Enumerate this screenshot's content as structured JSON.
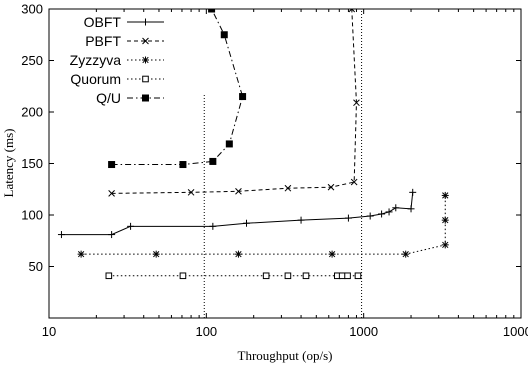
{
  "chart_data": {
    "type": "line",
    "xlabel": "Throughput (op/s)",
    "ylabel": "Latency (ms)",
    "xscale": "log",
    "xlim": [
      10,
      10000
    ],
    "ylim": [
      0,
      300
    ],
    "xticks": [
      10,
      100,
      1000,
      10000
    ],
    "xtick_labels": [
      "10",
      "100",
      "1000",
      "10000"
    ],
    "yticks": [
      50,
      100,
      150,
      200,
      250,
      300
    ],
    "ytick_labels": [
      "50",
      "100",
      "150",
      "200",
      "250",
      "300"
    ],
    "grid": false,
    "legend_position": "top-left",
    "reference_lines": [
      {
        "x": 97,
        "y_range": [
          0,
          218
        ]
      },
      {
        "x": 970,
        "y_range": [
          0,
          300
        ]
      }
    ],
    "series": [
      {
        "name": "OBFT",
        "marker": "plus",
        "line_style": "solid",
        "points": [
          [
            12,
            81
          ],
          [
            25,
            81
          ],
          [
            33,
            89
          ],
          [
            110,
            89
          ],
          [
            180,
            92
          ],
          [
            400,
            95
          ],
          [
            800,
            97
          ],
          [
            1100,
            99
          ],
          [
            1300,
            101
          ],
          [
            1450,
            103
          ],
          [
            1600,
            107
          ],
          [
            2000,
            106
          ],
          [
            2050,
            122
          ]
        ]
      },
      {
        "name": "PBFT",
        "marker": "cross",
        "line_style": "dashed",
        "points": [
          [
            25,
            121
          ],
          [
            80,
            122
          ],
          [
            160,
            123
          ],
          [
            330,
            126
          ],
          [
            620,
            127
          ],
          [
            870,
            132
          ],
          [
            900,
            209
          ],
          [
            840,
            300
          ]
        ]
      },
      {
        "name": "Zyzzyva",
        "marker": "asterisk",
        "line_style": "dotted",
        "points": [
          [
            16,
            62
          ],
          [
            48,
            62
          ],
          [
            160,
            62
          ],
          [
            630,
            62
          ],
          [
            1850,
            62
          ],
          [
            3300,
            71
          ],
          [
            3300,
            95
          ],
          [
            3300,
            119
          ]
        ]
      },
      {
        "name": "Quorum",
        "marker": "open-square",
        "line_style": "dotted",
        "points": [
          [
            24,
            41
          ],
          [
            71,
            41
          ],
          [
            240,
            41
          ],
          [
            330,
            41
          ],
          [
            430,
            41
          ],
          [
            680,
            41
          ],
          [
            730,
            41
          ],
          [
            790,
            41
          ],
          [
            920,
            41
          ]
        ]
      },
      {
        "name": "Q/U",
        "marker": "filled-square",
        "line_style": "dash-dot",
        "points": [
          [
            25,
            149
          ],
          [
            71,
            149
          ],
          [
            110,
            152
          ],
          [
            140,
            169
          ],
          [
            170,
            215
          ],
          [
            130,
            275
          ],
          [
            108,
            300
          ]
        ]
      }
    ]
  }
}
